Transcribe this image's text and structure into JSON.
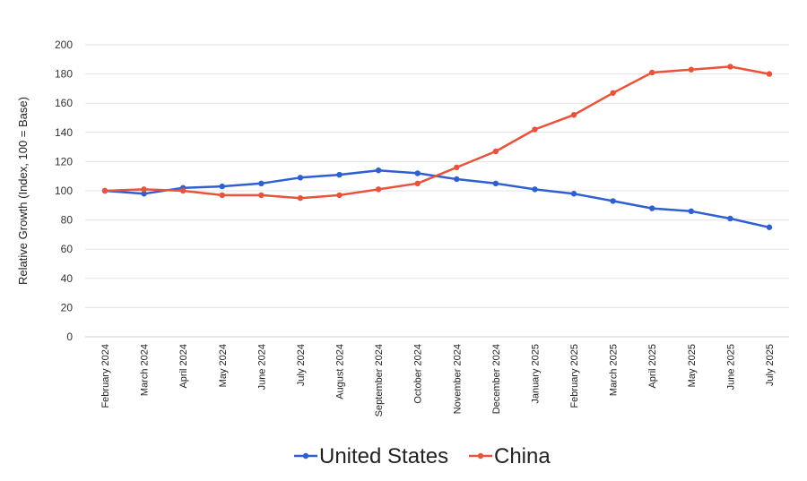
{
  "chart_data": {
    "type": "line",
    "title": "",
    "xlabel": "",
    "ylabel": "Relative Growth (Index, 100 = Base)",
    "categories": [
      "February 2024",
      "March 2024",
      "April 2024",
      "May 2024",
      "June 2024",
      "July 2024",
      "August 2024",
      "September 2024",
      "October 2024",
      "November 2024",
      "December 2024",
      "January 2025",
      "February 2025",
      "March 2025",
      "April 2025",
      "May 2025",
      "June 2025",
      "July 2025"
    ],
    "ylim": [
      0,
      200
    ],
    "yticks": [
      0,
      20,
      40,
      60,
      80,
      100,
      120,
      140,
      160,
      180,
      200
    ],
    "grid": true,
    "legend_position": "bottom",
    "series": [
      {
        "name": "United States",
        "color": "#2f5fd0",
        "values": [
          100,
          98,
          102,
          103,
          105,
          109,
          111,
          114,
          112,
          108,
          105,
          101,
          98,
          93,
          88,
          86,
          81,
          75
        ]
      },
      {
        "name": "China",
        "color": "#e8533c",
        "values": [
          100,
          101,
          100,
          97,
          97,
          95,
          97,
          101,
          105,
          116,
          127,
          142,
          152,
          167,
          181,
          183,
          185,
          180
        ]
      }
    ]
  }
}
